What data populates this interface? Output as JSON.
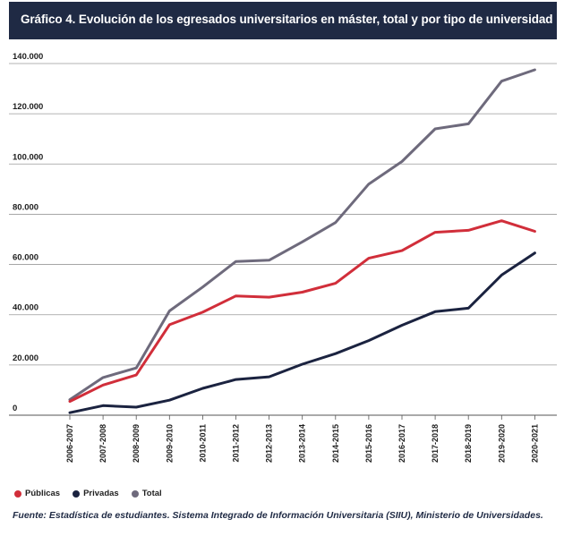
{
  "title": "Gráfico 4. Evolución de los egresados universitarios en máster, total y por tipo de universidad",
  "source": "Fuente: Estadística de estudiantes. Sistema Integrado de Información Universitaria (SIIU), Ministerio de Universidades.",
  "chart_data": {
    "type": "line",
    "title": "Gráfico 4. Evolución de los egresados universitarios en máster, total y por tipo de universidad",
    "xlabel": "",
    "ylabel": "",
    "ylim": [
      0,
      140000
    ],
    "grid": true,
    "legend_position": "bottom-left",
    "y_ticks": [
      {
        "value": 0,
        "label": "0"
      },
      {
        "value": 20000,
        "label": "20.000"
      },
      {
        "value": 40000,
        "label": "40.000"
      },
      {
        "value": 60000,
        "label": "60.000"
      },
      {
        "value": 80000,
        "label": "80.000"
      },
      {
        "value": 100000,
        "label": "100.000"
      },
      {
        "value": 120000,
        "label": "120.000"
      },
      {
        "value": 140000,
        "label": "140.000"
      }
    ],
    "categories": [
      "2006-2007",
      "2007-2008",
      "2008-2009",
      "2009-2010",
      "2010-2011",
      "2011-2012",
      "2012-2013",
      "2013-2014",
      "2014-2015",
      "2015-2016",
      "2016-2017",
      "2017-2018",
      "2018-2019",
      "2019-2020",
      "2020-2021"
    ],
    "series": [
      {
        "name": "Públicas",
        "color": "#d12e3a",
        "values": [
          5500,
          12000,
          16000,
          36000,
          41000,
          47500,
          47000,
          49000,
          52500,
          62500,
          65500,
          72800,
          73600,
          77400,
          73200
        ]
      },
      {
        "name": "Privadas",
        "color": "#1b2340",
        "values": [
          1000,
          3800,
          3200,
          6000,
          10700,
          14200,
          15300,
          20300,
          24500,
          29700,
          35800,
          41200,
          42600,
          55800,
          64600
        ]
      },
      {
        "name": "Total",
        "color": "#6e6a7c",
        "values": [
          6200,
          15000,
          18800,
          41500,
          51000,
          61200,
          61700,
          69000,
          76700,
          92000,
          101000,
          114000,
          116000,
          133000,
          137500
        ]
      }
    ]
  }
}
